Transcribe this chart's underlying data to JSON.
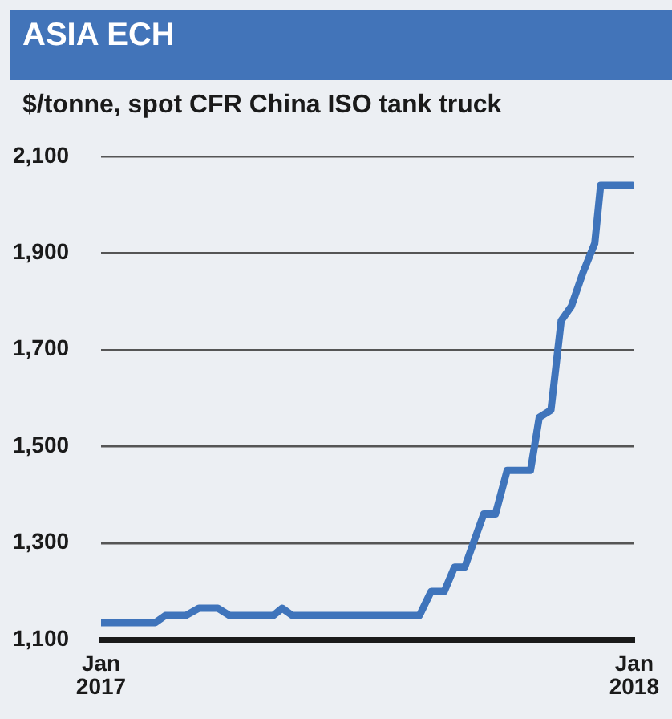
{
  "chart_data": {
    "type": "line",
    "title": "ASIA ECH",
    "subtitle": "$/tonne, spot CFR China ISO tank truck",
    "x": [
      "2017-01-01",
      "2017-02-07",
      "2017-02-14",
      "2017-02-28",
      "2017-03-09",
      "2017-03-22",
      "2017-03-30",
      "2017-04-29",
      "2017-05-05",
      "2017-05-12",
      "2017-08-07",
      "2017-08-15",
      "2017-08-24",
      "2017-08-31",
      "2017-09-07",
      "2017-09-20",
      "2017-09-28",
      "2017-10-06",
      "2017-10-22",
      "2017-10-28",
      "2017-11-05",
      "2017-11-12",
      "2017-11-19",
      "2017-11-27",
      "2017-12-05",
      "2017-12-09",
      "2017-12-31"
    ],
    "series": [
      {
        "color": "#3f74bb",
        "values": [
          1135,
          1135,
          1150,
          1150,
          1165,
          1165,
          1150,
          1150,
          1165,
          1150,
          1150,
          1200,
          1200,
          1250,
          1250,
          1360,
          1360,
          1450,
          1450,
          1560,
          1575,
          1760,
          1790,
          1860,
          1920,
          2040,
          2040
        ]
      }
    ],
    "xlim": [
      "2017-01-01",
      "2018-01-01"
    ],
    "xticks": [
      {
        "value": "2017-01-01",
        "label": "Jan 2017"
      },
      {
        "value": "2018-01-01",
        "label": "Jan 2018"
      }
    ],
    "ylim": [
      1100,
      2100
    ],
    "yticks": [
      {
        "value": 1100,
        "label": "1,100"
      },
      {
        "value": 1300,
        "label": "1,300"
      },
      {
        "value": 1500,
        "label": "1,500"
      },
      {
        "value": 1700,
        "label": "1,700"
      },
      {
        "value": 1900,
        "label": "1,900"
      },
      {
        "value": 2100,
        "label": "2,100"
      }
    ],
    "grid": "y",
    "legend": false,
    "marker": "none",
    "line_style": "solid"
  }
}
